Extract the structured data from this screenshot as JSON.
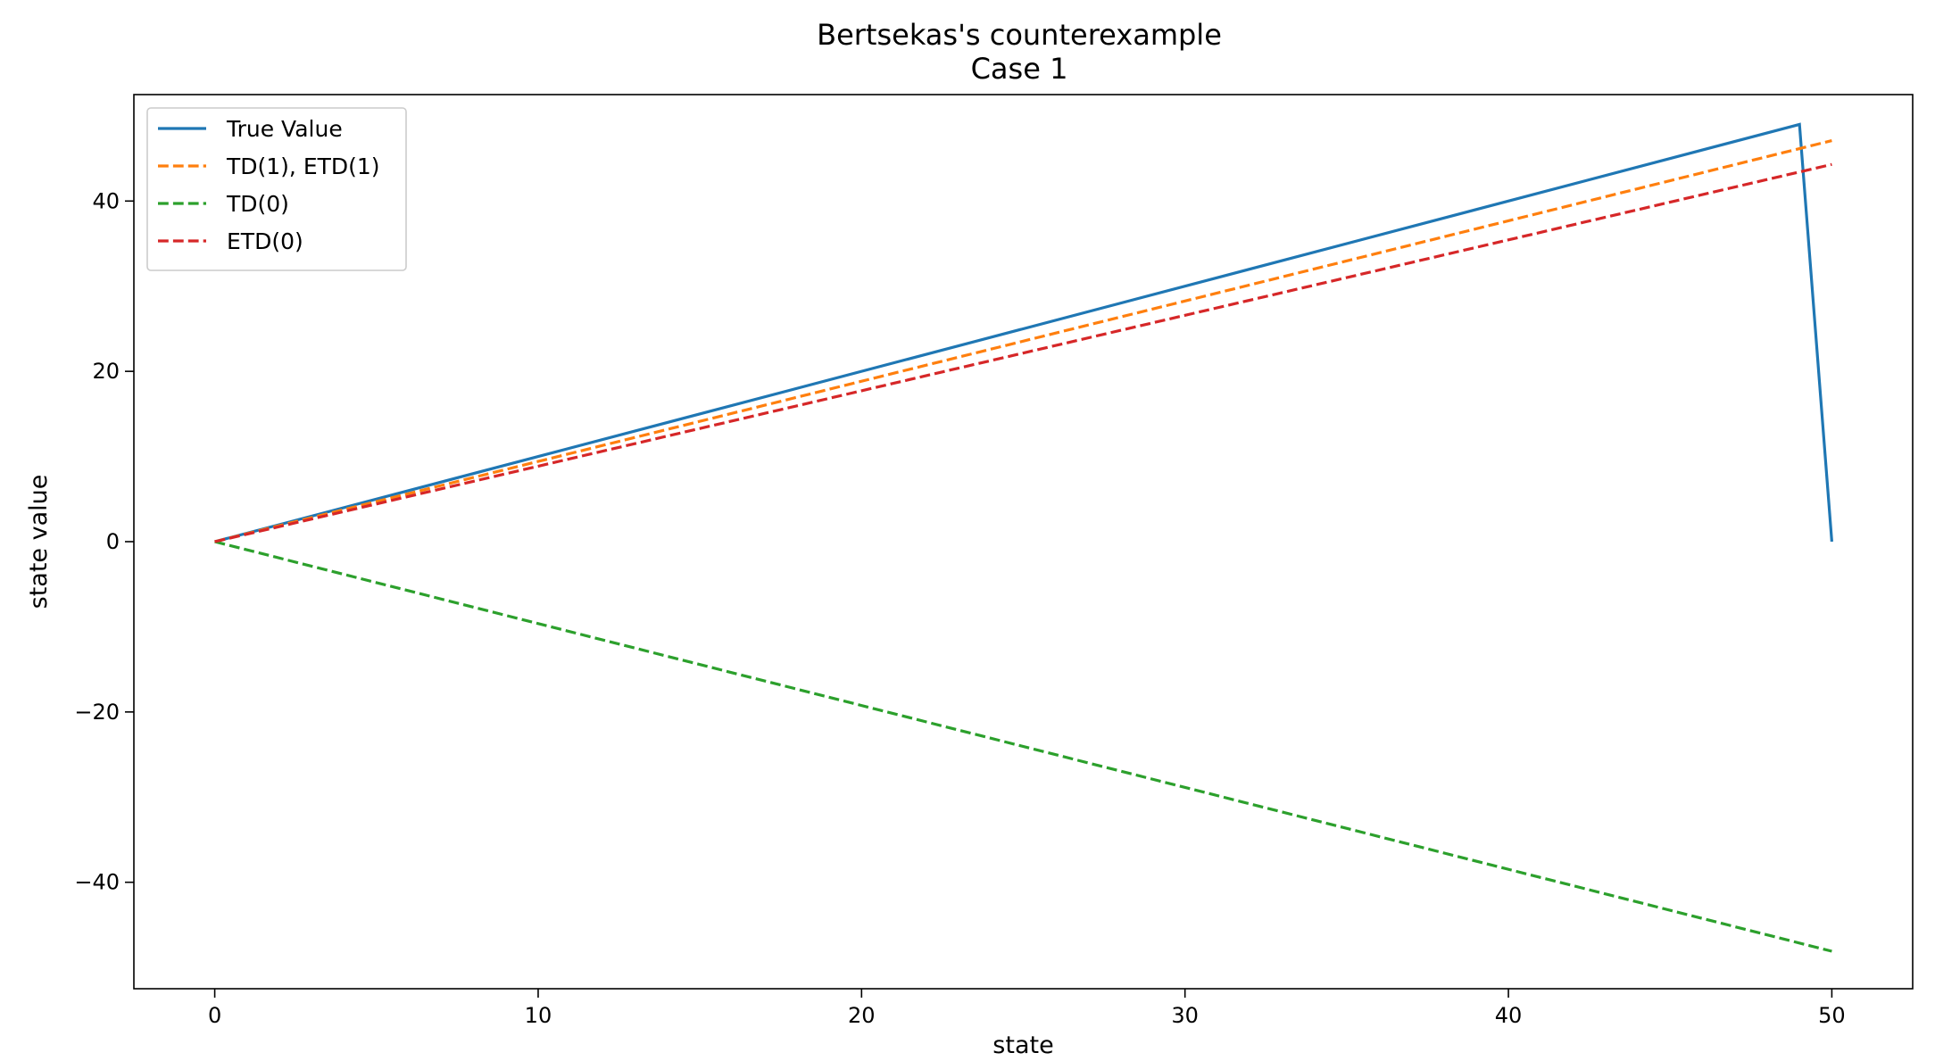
{
  "chart_data": {
    "type": "line",
    "title": "Bertsekas's counterexample",
    "subtitle": "Case 1",
    "xlabel": "state",
    "ylabel": "state value",
    "xlim": [
      -2.5,
      52.5
    ],
    "ylim": [
      -52.5,
      52.5
    ],
    "xticks": [
      0,
      10,
      20,
      30,
      40,
      50
    ],
    "yticks": [
      -40,
      -20,
      0,
      20,
      40
    ],
    "xtick_labels": [
      "0",
      "10",
      "20",
      "30",
      "40",
      "50"
    ],
    "ytick_labels": [
      "−40",
      "−20",
      "0",
      "20",
      "40"
    ],
    "grid": false,
    "legend_position": "top-left",
    "series": [
      {
        "name": "True Value",
        "color": "#1f77b4",
        "style": "solid",
        "points": [
          [
            0,
            0
          ],
          [
            49,
            49
          ],
          [
            50,
            0
          ]
        ]
      },
      {
        "name": "TD(1), ETD(1)",
        "color": "#ff7f0e",
        "style": "dashed",
        "points": [
          [
            0,
            0
          ],
          [
            50,
            47.1
          ]
        ]
      },
      {
        "name": "TD(0)",
        "color": "#2ca02c",
        "style": "dashed",
        "points": [
          [
            0,
            0
          ],
          [
            50,
            -48.1
          ]
        ]
      },
      {
        "name": "ETD(0)",
        "color": "#d62728",
        "style": "dashed",
        "points": [
          [
            0,
            0
          ],
          [
            50,
            44.3
          ]
        ]
      }
    ]
  }
}
